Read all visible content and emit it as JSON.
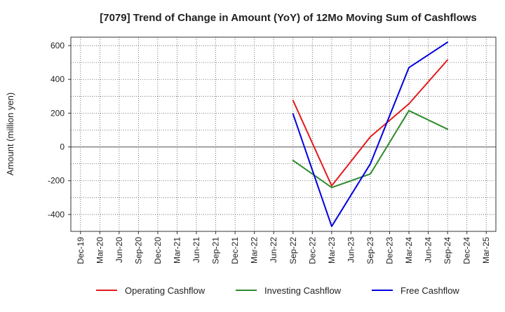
{
  "chart_data": {
    "type": "line",
    "title": "[7079]  Trend of Change in Amount (YoY) of 12Mo Moving Sum of Cashflows",
    "xlabel": "",
    "ylabel": "Amount (million yen)",
    "categories": [
      "Dec-19",
      "Mar-20",
      "Jun-20",
      "Sep-20",
      "Dec-20",
      "Mar-21",
      "Jun-21",
      "Sep-21",
      "Dec-21",
      "Mar-22",
      "Jun-22",
      "Sep-22",
      "Dec-22",
      "Mar-23",
      "Jun-23",
      "Sep-23",
      "Dec-23",
      "Mar-24",
      "Jun-24",
      "Sep-24",
      "Dec-24",
      "Mar-25"
    ],
    "ylim": [
      -500,
      650
    ],
    "yticks": [
      -400,
      -200,
      0,
      200,
      400,
      600
    ],
    "ytick_labels": [
      "-400",
      "-200",
      "0",
      "200",
      "400",
      "600"
    ],
    "grid": true,
    "legend_position": "bottom",
    "series": [
      {
        "name": "Operating Cashflow",
        "color": "#e31a1c",
        "points": [
          [
            "Sep-22",
            275
          ],
          [
            "Mar-23",
            -230
          ],
          [
            "Sep-23",
            60
          ],
          [
            "Mar-24",
            255
          ],
          [
            "Sep-24",
            515
          ]
        ]
      },
      {
        "name": "Investing Cashflow",
        "color": "#2e8b2e",
        "points": [
          [
            "Sep-22",
            -80
          ],
          [
            "Mar-23",
            -240
          ],
          [
            "Sep-23",
            -160
          ],
          [
            "Mar-24",
            215
          ],
          [
            "Sep-24",
            105
          ]
        ]
      },
      {
        "name": "Free Cashflow",
        "color": "#0000e0",
        "points": [
          [
            "Sep-22",
            195
          ],
          [
            "Mar-23",
            -470
          ],
          [
            "Sep-23",
            -100
          ],
          [
            "Mar-24",
            470
          ],
          [
            "Sep-24",
            620
          ]
        ]
      }
    ]
  }
}
